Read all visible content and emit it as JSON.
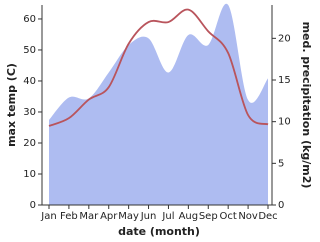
{
  "chart_data": {
    "type": "line-area",
    "xlabel": "date (month)",
    "ylabel": "max temp (C)",
    "y2label": "med. precipitation (kg/m2)",
    "categories": [
      "Jan",
      "Feb",
      "Mar",
      "Apr",
      "May",
      "Jun",
      "Jul",
      "Aug",
      "Sep",
      "Oct",
      "Nov",
      "Dec"
    ],
    "series": [
      {
        "name": "med. precipitation",
        "color": "#aebcf1",
        "axis": "y2",
        "kind": "area",
        "values": [
          10.2,
          12.9,
          12.8,
          15.9,
          19.2,
          20,
          15.9,
          20.4,
          19.2,
          24,
          12.6,
          15.2
        ]
      },
      {
        "name": "max temp",
        "color": "#b9545c",
        "axis": "y",
        "kind": "line",
        "values": [
          25.5,
          28,
          34,
          38,
          52,
          59,
          59,
          63,
          56,
          49,
          29,
          26
        ]
      }
    ],
    "ylim": [
      0,
      64.5
    ],
    "yticks": [
      0,
      10,
      20,
      30,
      40,
      50,
      60
    ],
    "y2lim": [
      0,
      24
    ],
    "y2ticks": [
      0,
      5,
      10,
      15,
      20
    ]
  }
}
